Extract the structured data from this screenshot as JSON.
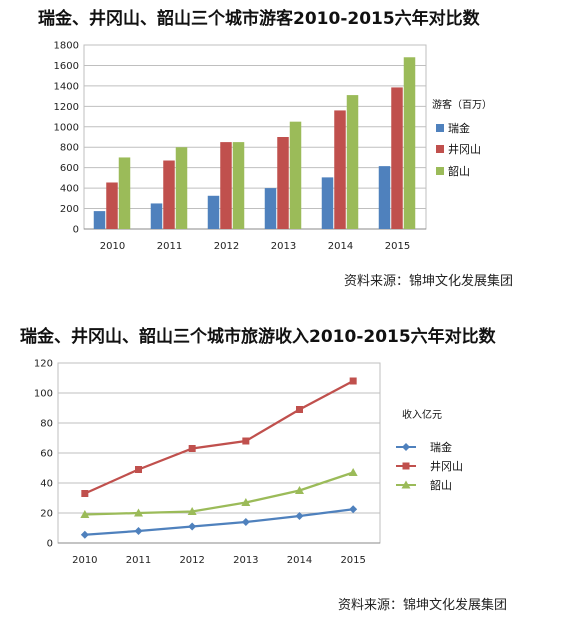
{
  "chart_data": [
    {
      "type": "bar",
      "title": "瑞金、井冈山、韶山三个城市游客2010-2015六年对比数",
      "legend_title": "游客（百万）",
      "legend_position": "right",
      "categories": [
        "2010",
        "2011",
        "2012",
        "2013",
        "2014",
        "2015"
      ],
      "y_ticks": [
        "0",
        "200",
        "400",
        "600",
        "800",
        "1000",
        "1200",
        "1400",
        "1600",
        "1800"
      ],
      "ylim": [
        0,
        1800
      ],
      "grid": true,
      "series": [
        {
          "name": "瑞金",
          "color": "#4f81bd",
          "values": [
            175,
            250,
            325,
            400,
            505,
            615
          ]
        },
        {
          "name": "井冈山",
          "color": "#c0504d",
          "values": [
            455,
            670,
            850,
            900,
            1160,
            1385
          ]
        },
        {
          "name": "韶山",
          "color": "#9bbb59",
          "values": [
            700,
            800,
            850,
            1050,
            1310,
            1680
          ]
        }
      ],
      "source": "资料来源：锦坤文化发展集团"
    },
    {
      "type": "line",
      "title": "瑞金、井冈山、韶山三个城市旅游收入2010-2015六年对比数",
      "legend_title": "收入亿元",
      "legend_position": "right",
      "categories": [
        "2010",
        "2011",
        "2012",
        "2013",
        "2014",
        "2015"
      ],
      "y_ticks": [
        "0",
        "20",
        "40",
        "60",
        "80",
        "100",
        "120"
      ],
      "ylim": [
        0,
        120
      ],
      "grid": true,
      "series": [
        {
          "name": "瑞金",
          "color": "#4f81bd",
          "marker": "diamond",
          "values": [
            5.5,
            8,
            11,
            14,
            18,
            22.5
          ]
        },
        {
          "name": "井冈山",
          "color": "#c0504d",
          "marker": "square",
          "values": [
            33,
            49,
            63,
            68,
            89,
            108
          ]
        },
        {
          "name": "韶山",
          "color": "#9bbb59",
          "marker": "triangle",
          "values": [
            19,
            20,
            21,
            27,
            35,
            47
          ]
        }
      ],
      "source": "资料来源：锦坤文化发展集团"
    }
  ]
}
